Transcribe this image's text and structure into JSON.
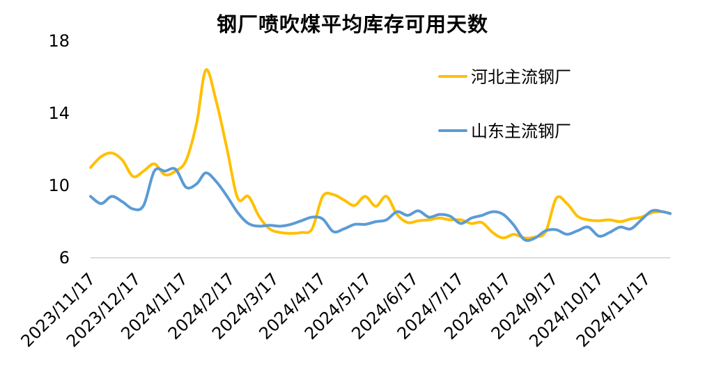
{
  "chart_data": {
    "type": "line",
    "title": "钢厂喷吹煤平均库存可用天数",
    "xlabel": "",
    "ylabel": "",
    "ylim": [
      6,
      18
    ],
    "yticks": [
      6,
      10,
      14,
      18
    ],
    "x_tick_labels": [
      "2023/11/17",
      "2023/12/17",
      "2024/1/17",
      "2024/2/17",
      "2024/3/17",
      "2024/4/17",
      "2024/5/17",
      "2024/6/17",
      "2024/7/17",
      "2024/8/17",
      "2024/9/17",
      "2024/10/17",
      "2024/11/17"
    ],
    "x_start": "2023-11-17",
    "x_end": "2024-12-03",
    "legend_position": "top-right",
    "grid": false,
    "series": [
      {
        "name": "河北主流钢厂",
        "color": "#FFC000",
        "points": [
          [
            "2023-11-17",
            11.0
          ],
          [
            "2023-11-24",
            11.6
          ],
          [
            "2023-12-01",
            11.8
          ],
          [
            "2023-12-08",
            11.4
          ],
          [
            "2023-12-15",
            10.5
          ],
          [
            "2023-12-22",
            10.8
          ],
          [
            "2023-12-29",
            11.2
          ],
          [
            "2024-01-05",
            10.6
          ],
          [
            "2024-01-12",
            10.8
          ],
          [
            "2024-01-19",
            11.4
          ],
          [
            "2024-01-26",
            13.5
          ],
          [
            "2024-02-01",
            16.4
          ],
          [
            "2024-02-08",
            14.6
          ],
          [
            "2024-02-15",
            12.0
          ],
          [
            "2024-02-22",
            9.3
          ],
          [
            "2024-02-29",
            9.4
          ],
          [
            "2024-03-07",
            8.3
          ],
          [
            "2024-03-14",
            7.6
          ],
          [
            "2024-03-21",
            7.4
          ],
          [
            "2024-03-28",
            7.35
          ],
          [
            "2024-04-04",
            7.4
          ],
          [
            "2024-04-11",
            7.6
          ],
          [
            "2024-04-18",
            9.4
          ],
          [
            "2024-04-25",
            9.5
          ],
          [
            "2024-05-02",
            9.2
          ],
          [
            "2024-05-09",
            8.9
          ],
          [
            "2024-05-16",
            9.4
          ],
          [
            "2024-05-23",
            8.85
          ],
          [
            "2024-05-30",
            9.4
          ],
          [
            "2024-06-06",
            8.4
          ],
          [
            "2024-06-13",
            7.95
          ],
          [
            "2024-06-20",
            8.05
          ],
          [
            "2024-06-27",
            8.1
          ],
          [
            "2024-07-04",
            8.2
          ],
          [
            "2024-07-11",
            8.1
          ],
          [
            "2024-07-18",
            8.1
          ],
          [
            "2024-07-25",
            7.9
          ],
          [
            "2024-08-01",
            7.95
          ],
          [
            "2024-08-08",
            7.4
          ],
          [
            "2024-08-15",
            7.1
          ],
          [
            "2024-08-22",
            7.3
          ],
          [
            "2024-08-29",
            7.1
          ],
          [
            "2024-09-05",
            7.15
          ],
          [
            "2024-09-12",
            7.45
          ],
          [
            "2024-09-19",
            9.3
          ],
          [
            "2024-09-26",
            9.0
          ],
          [
            "2024-10-03",
            8.3
          ],
          [
            "2024-10-10",
            8.1
          ],
          [
            "2024-10-17",
            8.05
          ],
          [
            "2024-10-24",
            8.1
          ],
          [
            "2024-10-31",
            8.0
          ],
          [
            "2024-11-07",
            8.15
          ],
          [
            "2024-11-14",
            8.25
          ],
          [
            "2024-11-21",
            8.5
          ],
          [
            "2024-11-28",
            8.55
          ],
          [
            "2024-12-03",
            8.45
          ]
        ]
      },
      {
        "name": "山东主流钢厂",
        "color": "#5B9BD5",
        "points": [
          [
            "2023-11-17",
            9.4
          ],
          [
            "2023-11-24",
            9.0
          ],
          [
            "2023-12-01",
            9.4
          ],
          [
            "2023-12-08",
            9.1
          ],
          [
            "2023-12-15",
            8.7
          ],
          [
            "2023-12-22",
            8.9
          ],
          [
            "2023-12-29",
            10.8
          ],
          [
            "2024-01-05",
            10.8
          ],
          [
            "2024-01-12",
            10.9
          ],
          [
            "2024-01-19",
            9.9
          ],
          [
            "2024-01-26",
            10.1
          ],
          [
            "2024-02-01",
            10.7
          ],
          [
            "2024-02-08",
            10.2
          ],
          [
            "2024-02-15",
            9.4
          ],
          [
            "2024-02-22",
            8.5
          ],
          [
            "2024-02-29",
            7.9
          ],
          [
            "2024-03-07",
            7.75
          ],
          [
            "2024-03-14",
            7.8
          ],
          [
            "2024-03-21",
            7.75
          ],
          [
            "2024-03-28",
            7.85
          ],
          [
            "2024-04-04",
            8.05
          ],
          [
            "2024-04-11",
            8.25
          ],
          [
            "2024-04-18",
            8.15
          ],
          [
            "2024-04-25",
            7.45
          ],
          [
            "2024-05-02",
            7.6
          ],
          [
            "2024-05-09",
            7.85
          ],
          [
            "2024-05-16",
            7.85
          ],
          [
            "2024-05-23",
            8.0
          ],
          [
            "2024-05-30",
            8.1
          ],
          [
            "2024-06-06",
            8.55
          ],
          [
            "2024-06-13",
            8.35
          ],
          [
            "2024-06-20",
            8.6
          ],
          [
            "2024-06-27",
            8.25
          ],
          [
            "2024-07-04",
            8.4
          ],
          [
            "2024-07-11",
            8.3
          ],
          [
            "2024-07-18",
            7.9
          ],
          [
            "2024-07-25",
            8.2
          ],
          [
            "2024-08-01",
            8.35
          ],
          [
            "2024-08-08",
            8.55
          ],
          [
            "2024-08-15",
            8.4
          ],
          [
            "2024-08-22",
            7.8
          ],
          [
            "2024-08-29",
            7.0
          ],
          [
            "2024-09-05",
            7.1
          ],
          [
            "2024-09-12",
            7.5
          ],
          [
            "2024-09-19",
            7.55
          ],
          [
            "2024-09-26",
            7.3
          ],
          [
            "2024-10-03",
            7.5
          ],
          [
            "2024-10-10",
            7.7
          ],
          [
            "2024-10-17",
            7.2
          ],
          [
            "2024-10-24",
            7.4
          ],
          [
            "2024-10-31",
            7.7
          ],
          [
            "2024-11-07",
            7.6
          ],
          [
            "2024-11-14",
            8.1
          ],
          [
            "2024-11-21",
            8.6
          ],
          [
            "2024-11-28",
            8.55
          ],
          [
            "2024-12-03",
            8.45
          ]
        ]
      }
    ]
  }
}
